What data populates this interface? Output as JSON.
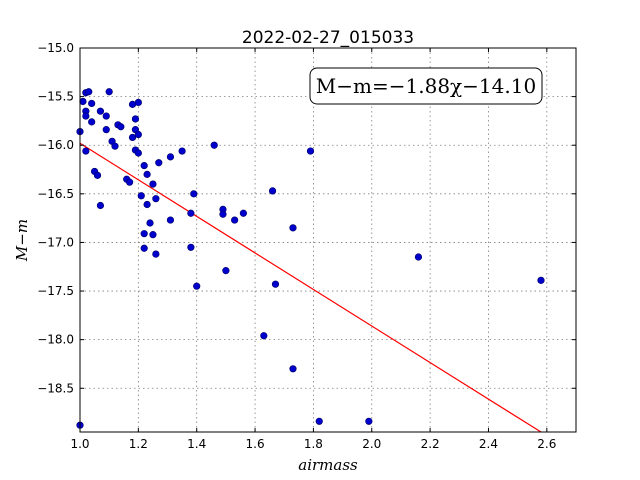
{
  "chart_data": {
    "type": "scatter",
    "title": "2022-02-27_015033",
    "xlabel": "airmass",
    "ylabel": "M−m",
    "xlim": [
      1.0,
      2.7
    ],
    "ylim": [
      -18.95,
      -15.0
    ],
    "y_inverted": false,
    "grid": true,
    "x_ticks": [
      1.0,
      1.2,
      1.4,
      1.6,
      1.8,
      2.0,
      2.2,
      2.4,
      2.6
    ],
    "x_tick_labels": [
      "1.0",
      "1.2",
      "1.4",
      "1.6",
      "1.8",
      "2.0",
      "2.2",
      "2.4",
      "2.6"
    ],
    "y_ticks": [
      -15.0,
      -15.5,
      -16.0,
      -16.5,
      -17.0,
      -17.5,
      -18.0,
      -18.5
    ],
    "y_tick_labels": [
      "−15.0",
      "−15.5",
      "−16.0",
      "−16.5",
      "−17.0",
      "−17.5",
      "−18.0",
      "−18.5"
    ],
    "annotation": "M−m=−1.88χ−14.10",
    "point_color": "#0000cc",
    "fit_color": "#ff0000",
    "fit": {
      "slope": -1.88,
      "intercept": -14.1,
      "x_start": 1.0,
      "x_end": 2.58
    },
    "points": [
      {
        "x": 1.0,
        "y": -15.86
      },
      {
        "x": 1.0,
        "y": -18.88
      },
      {
        "x": 1.01,
        "y": -15.55
      },
      {
        "x": 1.02,
        "y": -15.46
      },
      {
        "x": 1.02,
        "y": -15.65
      },
      {
        "x": 1.02,
        "y": -15.7
      },
      {
        "x": 1.02,
        "y": -16.06
      },
      {
        "x": 1.03,
        "y": -15.45
      },
      {
        "x": 1.04,
        "y": -15.57
      },
      {
        "x": 1.04,
        "y": -15.76
      },
      {
        "x": 1.05,
        "y": -16.27
      },
      {
        "x": 1.06,
        "y": -16.31
      },
      {
        "x": 1.07,
        "y": -16.62
      },
      {
        "x": 1.07,
        "y": -15.65
      },
      {
        "x": 1.09,
        "y": -15.84
      },
      {
        "x": 1.09,
        "y": -15.7
      },
      {
        "x": 1.1,
        "y": -15.45
      },
      {
        "x": 1.11,
        "y": -15.96
      },
      {
        "x": 1.12,
        "y": -16.01
      },
      {
        "x": 1.13,
        "y": -15.79
      },
      {
        "x": 1.14,
        "y": -15.81
      },
      {
        "x": 1.16,
        "y": -16.35
      },
      {
        "x": 1.17,
        "y": -16.38
      },
      {
        "x": 1.18,
        "y": -15.58
      },
      {
        "x": 1.18,
        "y": -15.92
      },
      {
        "x": 1.19,
        "y": -15.73
      },
      {
        "x": 1.19,
        "y": -15.84
      },
      {
        "x": 1.19,
        "y": -16.05
      },
      {
        "x": 1.2,
        "y": -15.56
      },
      {
        "x": 1.2,
        "y": -16.08
      },
      {
        "x": 1.2,
        "y": -15.89
      },
      {
        "x": 1.21,
        "y": -16.52
      },
      {
        "x": 1.22,
        "y": -16.91
      },
      {
        "x": 1.22,
        "y": -17.06
      },
      {
        "x": 1.22,
        "y": -16.21
      },
      {
        "x": 1.23,
        "y": -16.3
      },
      {
        "x": 1.23,
        "y": -16.61
      },
      {
        "x": 1.24,
        "y": -16.8
      },
      {
        "x": 1.25,
        "y": -16.4
      },
      {
        "x": 1.25,
        "y": -16.92
      },
      {
        "x": 1.26,
        "y": -16.55
      },
      {
        "x": 1.26,
        "y": -17.12
      },
      {
        "x": 1.27,
        "y": -16.18
      },
      {
        "x": 1.31,
        "y": -16.12
      },
      {
        "x": 1.31,
        "y": -16.77
      },
      {
        "x": 1.35,
        "y": -16.06
      },
      {
        "x": 1.38,
        "y": -16.7
      },
      {
        "x": 1.38,
        "y": -17.05
      },
      {
        "x": 1.39,
        "y": -16.5
      },
      {
        "x": 1.4,
        "y": -17.45
      },
      {
        "x": 1.46,
        "y": -16.0
      },
      {
        "x": 1.49,
        "y": -16.66
      },
      {
        "x": 1.49,
        "y": -16.71
      },
      {
        "x": 1.5,
        "y": -17.29
      },
      {
        "x": 1.53,
        "y": -16.77
      },
      {
        "x": 1.56,
        "y": -16.7
      },
      {
        "x": 1.63,
        "y": -17.96
      },
      {
        "x": 1.66,
        "y": -16.47
      },
      {
        "x": 1.67,
        "y": -17.43
      },
      {
        "x": 1.73,
        "y": -16.85
      },
      {
        "x": 1.73,
        "y": -18.3
      },
      {
        "x": 1.79,
        "y": -16.06
      },
      {
        "x": 1.82,
        "y": -18.84
      },
      {
        "x": 1.99,
        "y": -18.84
      },
      {
        "x": 2.16,
        "y": -17.15
      },
      {
        "x": 2.58,
        "y": -17.39
      }
    ]
  }
}
